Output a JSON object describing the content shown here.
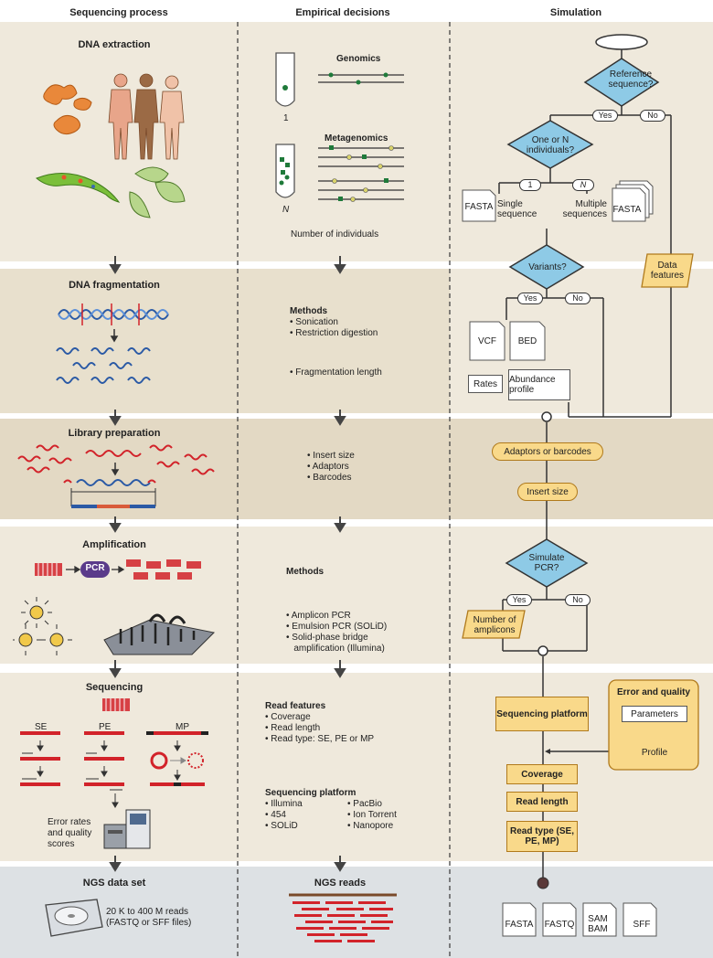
{
  "headers": {
    "col1": "Sequencing process",
    "col2": "Empirical decisions",
    "col3": "Simulation"
  },
  "col1": {
    "extraction": "DNA extraction",
    "fragmentation": "DNA fragmentation",
    "library": "Library preparation",
    "amplification": "Amplification",
    "pcr_label": "PCR",
    "sequencing": "Sequencing",
    "se": "SE",
    "pe": "PE",
    "mp": "MP",
    "error_rates": "Error rates and quality scores",
    "dataset": "NGS data set",
    "reads_count": "20 K to 400 M reads (FASTQ or SFF files)"
  },
  "col2": {
    "genomics": "Genomics",
    "tube1_label": "1",
    "metagenomics": "Metagenomics",
    "tubeN_label": "N",
    "num_individuals": "Number of individuals",
    "frag_methods_title": "Methods",
    "frag_methods": [
      "• Sonication",
      "• Restriction digestion"
    ],
    "frag_length": "• Fragmentation length",
    "library_items": [
      "• Insert size",
      "• Adaptors",
      "• Barcodes"
    ],
    "amp_methods_title": "Methods",
    "amp_methods": [
      "• Amplicon PCR",
      "• Emulsion PCR (SOLiD)",
      "• Solid-phase bridge",
      "   amplification (Illumina)"
    ],
    "read_features_title": "Read features",
    "read_features": [
      "• Coverage",
      "• Read length",
      "• Read type: SE, PE or MP"
    ],
    "platform_title": "Sequencing platform",
    "platforms_left": [
      "• Illumina",
      "• 454",
      "• SOLiD"
    ],
    "platforms_right": [
      "• PacBio",
      "• Ion Torrent",
      "• Nanopore"
    ],
    "ngs_reads": "NGS reads"
  },
  "col3": {
    "reference": "Reference sequence?",
    "yes1": "Yes",
    "no1": "No",
    "one_or_n": "One or N individuals?",
    "opt1": "1",
    "optN": "N",
    "fasta1": "FASTA",
    "single": "Single sequence",
    "multiple": "Multiple sequences",
    "fasta2": "FASTA",
    "data_features": "Data features",
    "variants": "Variants?",
    "yes2": "Yes",
    "no2": "No",
    "vcf": "VCF",
    "bed": "BED",
    "rates": "Rates",
    "abundance": "Abundance profile",
    "adaptors": "Adaptors or barcodes",
    "insert_size": "Insert size",
    "simulate_pcr": "Simulate PCR?",
    "yes3": "Yes",
    "no3": "No",
    "num_amplicons": "Number of amplicons",
    "seq_platform": "Sequencing platform",
    "error_quality": "Error and quality",
    "parameters": "Parameters",
    "profile": "Profile",
    "coverage": "Coverage",
    "read_length": "Read length",
    "read_type": "Read type (SE, PE, MP)",
    "outputs": [
      "FASTA",
      "FASTQ",
      "SAM BAM",
      "SFF"
    ]
  },
  "colors": {
    "band_light": "#efe9dc",
    "band_dark": "#e3d9c4",
    "band_white": "#ffffff",
    "band_gray": "#dde1e4",
    "diamond": "#8ecae6",
    "box_fill": "#f9d98a",
    "accent_red": "#d2232a",
    "accent_blue": "#2b5aa5"
  }
}
